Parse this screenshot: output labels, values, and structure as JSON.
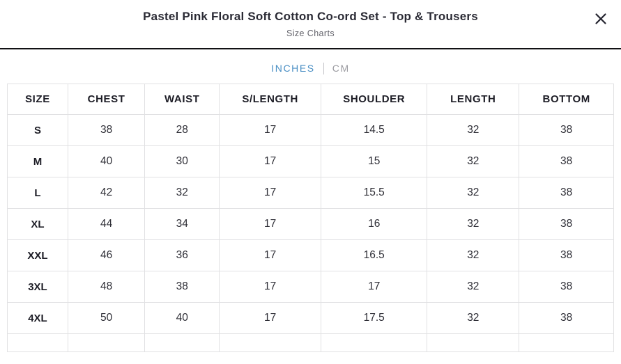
{
  "modal": {
    "title": "Pastel Pink Floral Soft Cotton Co-ord Set - Top & Trousers",
    "subtitle": "Size Charts"
  },
  "unit_toggle": {
    "inches_label": "INCHES",
    "cm_label": "CM",
    "selected": "INCHES",
    "active_color": "#4a8fc4",
    "inactive_color": "#9b9ba1"
  },
  "size_chart": {
    "unit": "INCHES",
    "columns": [
      "SIZE",
      "CHEST",
      "WAIST",
      "S/LENGTH",
      "SHOULDER",
      "LENGTH",
      "BOTTOM"
    ],
    "column_widths_pct": [
      10.0,
      12.7,
      12.3,
      16.8,
      17.5,
      15.2,
      15.6
    ],
    "rows": [
      [
        "S",
        "38",
        "28",
        "17",
        "14.5",
        "32",
        "38"
      ],
      [
        "M",
        "40",
        "30",
        "17",
        "15",
        "32",
        "38"
      ],
      [
        "L",
        "42",
        "32",
        "17",
        "15.5",
        "32",
        "38"
      ],
      [
        "XL",
        "44",
        "34",
        "17",
        "16",
        "32",
        "38"
      ],
      [
        "XXL",
        "46",
        "36",
        "17",
        "16.5",
        "32",
        "38"
      ],
      [
        "3XL",
        "48",
        "38",
        "17",
        "17",
        "32",
        "38"
      ],
      [
        "4XL",
        "50",
        "40",
        "17",
        "17.5",
        "32",
        "38"
      ]
    ]
  }
}
